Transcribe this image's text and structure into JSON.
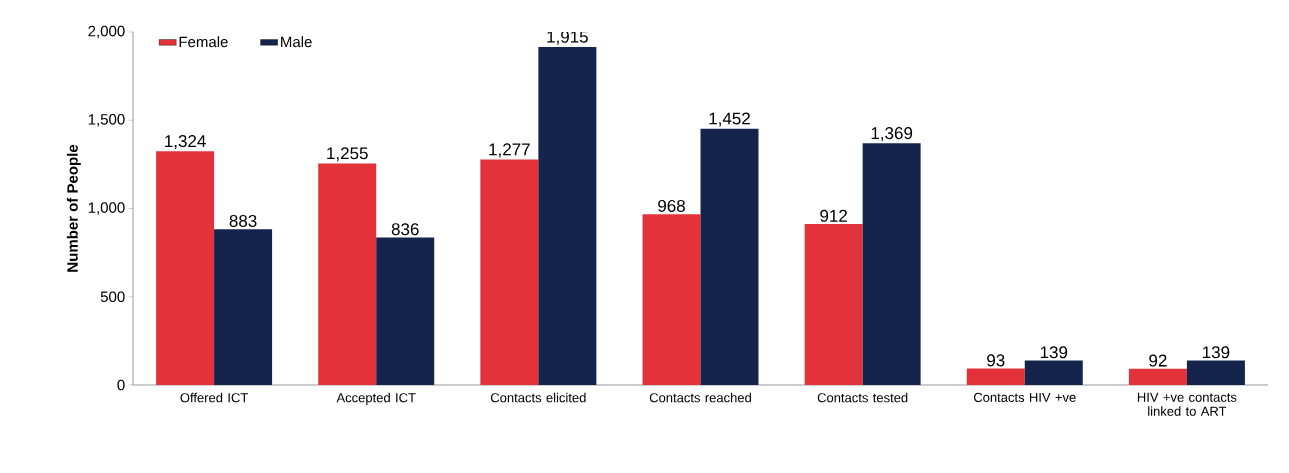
{
  "chart_data": {
    "type": "bar",
    "ylabel": "Number of People",
    "categories": [
      "Offered ICT",
      "Accepted ICT",
      "Contacts elicited",
      "Contacts reached",
      "Contacts tested",
      "Contacts HIV +ve",
      "HIV +ve contacts linked to ART"
    ],
    "series": [
      {
        "name": "Female",
        "color": "#e3323a",
        "values": [
          1324,
          1255,
          1277,
          968,
          912,
          93,
          92
        ],
        "value_labels": [
          "1,324",
          "1,255",
          "1,277",
          "968",
          "912",
          "93",
          "92"
        ]
      },
      {
        "name": "Male",
        "color": "#14244a",
        "values": [
          883,
          836,
          1915,
          1452,
          1369,
          139,
          139
        ],
        "value_labels": [
          "883",
          "836",
          "1,915",
          "1,452",
          "1,369",
          "139",
          "139"
        ]
      }
    ],
    "ylim": [
      0,
      2000
    ],
    "yticks": [
      0,
      500,
      {
        "value": 1000,
        "label": "1,000"
      },
      {
        "value": 1500,
        "label": "1,500"
      },
      {
        "value": 2000,
        "label": "2,000"
      }
    ],
    "legend": "top left"
  }
}
